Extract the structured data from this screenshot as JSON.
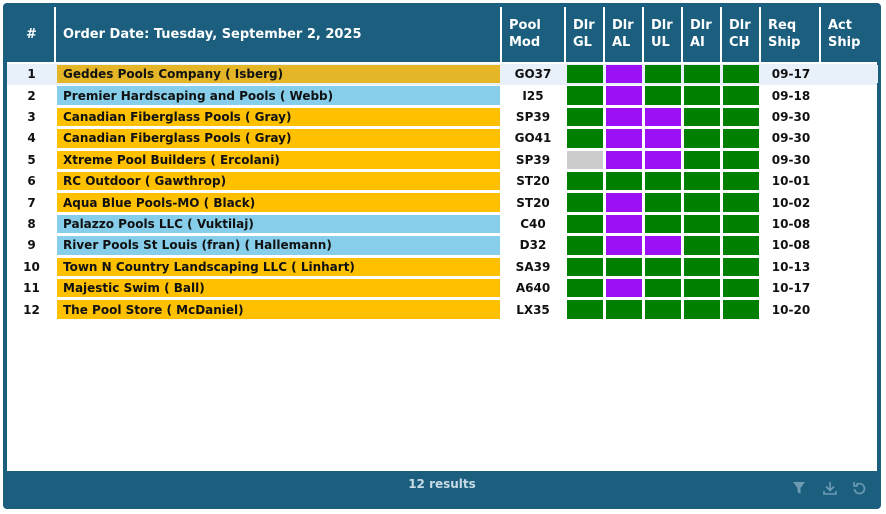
{
  "header": {
    "columns": [
      "#",
      "Order Date: Tuesday, September 2, 2025",
      "Pool Mod",
      "Dlr GL",
      "Dlr AL",
      "Dlr UL",
      "Dlr AI",
      "Dlr CH",
      "Req Ship",
      "Act Ship"
    ]
  },
  "table": {
    "selected_row": 0,
    "rows": [
      {
        "index": 1,
        "customer": "Geddes Pools Company ( Isberg)",
        "color": "#e3b527",
        "model": "GO37",
        "dlr": [
          "#008000",
          "#9b10f5",
          "#008000",
          "#008000",
          "#008000"
        ],
        "req_ship": "09-17"
      },
      {
        "index": 2,
        "customer": "Premier Hardscaping and Pools ( Webb)",
        "color": "#87ceeb",
        "model": "I25",
        "dlr": [
          "#008000",
          "#9b10f5",
          "#008000",
          "#008000",
          "#008000"
        ],
        "req_ship": "09-18"
      },
      {
        "index": 3,
        "customer": "Canadian Fiberglass Pools ( Gray)",
        "color": "#ffc000",
        "model": "SP39",
        "dlr": [
          "#008000",
          "#9b10f5",
          "#9b10f5",
          "#008000",
          "#008000"
        ],
        "req_ship": "09-30"
      },
      {
        "index": 4,
        "customer": "Canadian Fiberglass Pools ( Gray)",
        "color": "#ffc000",
        "model": "GO41",
        "dlr": [
          "#008000",
          "#9b10f5",
          "#9b10f5",
          "#008000",
          "#008000"
        ],
        "req_ship": "09-30"
      },
      {
        "index": 5,
        "customer": "Xtreme Pool Builders ( Ercolani)",
        "color": "#ffc000",
        "model": "SP39",
        "dlr": [
          "#cccccc",
          "#9b10f5",
          "#9b10f5",
          "#008000",
          "#008000"
        ],
        "req_ship": "09-30"
      },
      {
        "index": 6,
        "customer": "RC Outdoor ( Gawthrop)",
        "color": "#ffc000",
        "model": "ST20",
        "dlr": [
          "#008000",
          "#008000",
          "#008000",
          "#008000",
          "#008000"
        ],
        "req_ship": "10-01"
      },
      {
        "index": 7,
        "customer": "Aqua Blue Pools-MO ( Black)",
        "color": "#ffc000",
        "model": "ST20",
        "dlr": [
          "#008000",
          "#9b10f5",
          "#008000",
          "#008000",
          "#008000"
        ],
        "req_ship": "10-02"
      },
      {
        "index": 8,
        "customer": "Palazzo Pools LLC ( Vuktilaj)",
        "color": "#87ceeb",
        "model": "C40",
        "dlr": [
          "#008000",
          "#9b10f5",
          "#008000",
          "#008000",
          "#008000"
        ],
        "req_ship": "10-08"
      },
      {
        "index": 9,
        "customer": "River Pools St Louis (fran) ( Hallemann)",
        "color": "#87ceeb",
        "model": "D32",
        "dlr": [
          "#008000",
          "#9b10f5",
          "#9b10f5",
          "#008000",
          "#008000"
        ],
        "req_ship": "10-08"
      },
      {
        "index": 10,
        "customer": "Town N Country Landscaping LLC ( Linhart)",
        "color": "#ffc000",
        "model": "SA39",
        "dlr": [
          "#008000",
          "#008000",
          "#008000",
          "#008000",
          "#008000"
        ],
        "req_ship": "10-13"
      },
      {
        "index": 11,
        "customer": "Majestic Swim ( Ball)",
        "color": "#ffc000",
        "model": "A640",
        "dlr": [
          "#008000",
          "#9b10f5",
          "#008000",
          "#008000",
          "#008000"
        ],
        "req_ship": "10-17"
      },
      {
        "index": 12,
        "customer": "The Pool Store ( McDaniel)",
        "color": "#ffc000",
        "model": "LX35",
        "dlr": [
          "#008000",
          "#008000",
          "#008000",
          "#008000",
          "#008000"
        ],
        "req_ship": "10-20"
      }
    ]
  },
  "footer": {
    "results": "12 results"
  }
}
